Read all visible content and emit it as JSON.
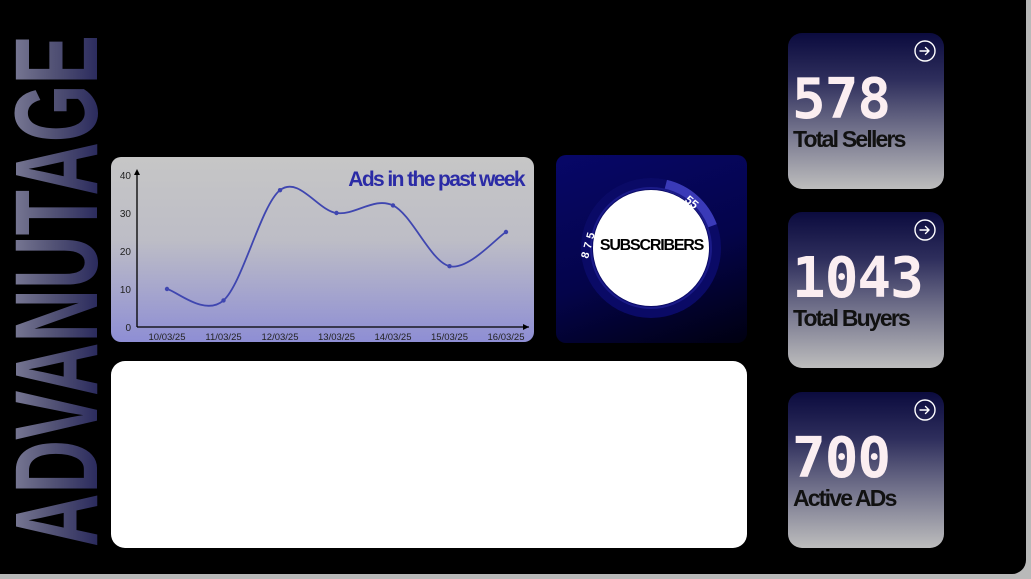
{
  "brand": {
    "text": "ADVANUTAGE"
  },
  "ads_chart": {
    "title": "Ads in the past week",
    "chart_data": {
      "type": "line",
      "title": "Ads in the past week",
      "xlabel": "",
      "ylabel": "",
      "categories": [
        "10/03/25",
        "11/03/25",
        "12/03/25",
        "13/03/25",
        "14/03/25",
        "15/03/25",
        "16/03/25"
      ],
      "values": [
        10,
        7,
        36,
        30,
        32,
        16,
        25
      ],
      "y_ticks": [
        "0",
        "10",
        "20",
        "30",
        "40"
      ],
      "ylim": [
        0,
        40
      ],
      "grid": false,
      "color": "#3f46b0"
    }
  },
  "subscribers": {
    "label": "SUBSCRIBERS",
    "segment_a": "55",
    "segment_b": "875",
    "colors": {
      "ring": "#0a0a6a",
      "highlight": "#3a3ab8",
      "center": "#ffffff"
    }
  },
  "stats": [
    {
      "value": "578",
      "label": "Total Sellers"
    },
    {
      "value": "1043",
      "label": "Total Buyers"
    },
    {
      "value": "700",
      "label": "Active ADs"
    }
  ],
  "icons": {
    "stat_action": "arrow-right-circle-icon"
  }
}
